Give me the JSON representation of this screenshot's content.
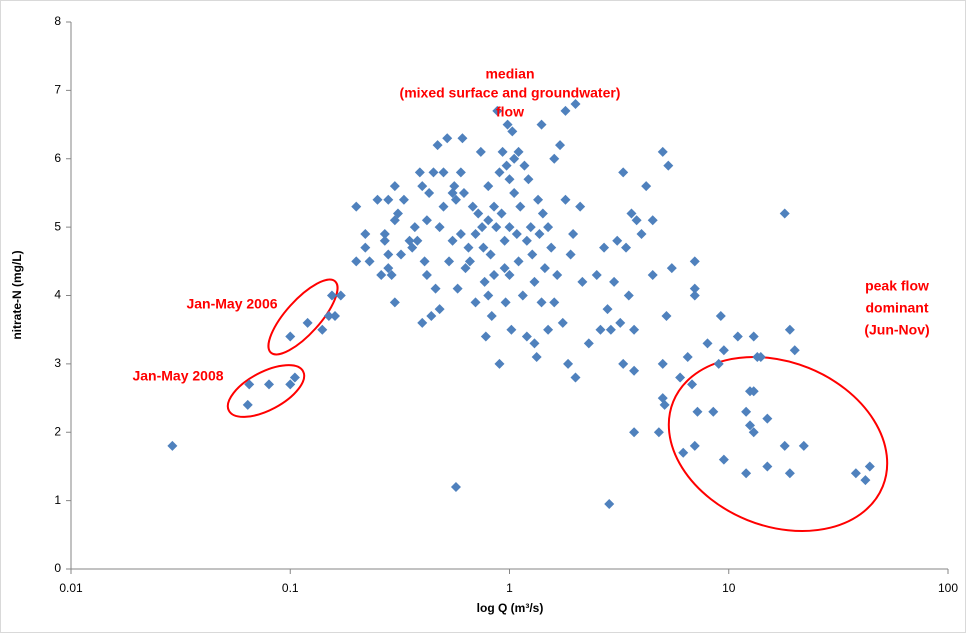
{
  "chart_data": {
    "type": "scatter",
    "color": "#4f81bd",
    "log_x": true,
    "grid": false,
    "x_label": "log Q (m³/s)",
    "y_label": "nitrate-N (mg/L)",
    "xlim": [
      0.01,
      100
    ],
    "xticks": [
      0.01,
      0.1,
      1,
      10,
      100
    ],
    "ylim": [
      0,
      8
    ],
    "yticks": [
      0,
      1,
      2,
      3,
      4,
      5,
      6,
      7,
      8
    ],
    "annotations": [
      {
        "text": [
          "median",
          "(mixed surface and groundwater)",
          "flow"
        ]
      },
      {
        "text": [
          "Jan-May 2006"
        ]
      },
      {
        "text": [
          "Jan-May 2008"
        ]
      },
      {
        "text": [
          "peak flow",
          "dominant",
          "(Jun-Nov)"
        ]
      }
    ],
    "x": [
      0.029,
      0.064,
      0.065,
      0.08,
      0.1,
      0.105,
      0.1,
      0.12,
      0.14,
      0.15,
      0.155,
      0.16,
      0.17,
      0.2,
      0.2,
      0.22,
      0.22,
      0.23,
      0.25,
      0.26,
      0.27,
      0.27,
      0.28,
      0.28,
      0.28,
      0.29,
      0.3,
      0.3,
      0.3,
      0.31,
      0.32,
      0.33,
      0.35,
      0.36,
      0.37,
      0.38,
      0.39,
      0.4,
      0.4,
      0.41,
      0.42,
      0.42,
      0.43,
      0.44,
      0.45,
      0.46,
      0.47,
      0.48,
      0.48,
      0.5,
      0.5,
      0.52,
      0.53,
      0.55,
      0.55,
      0.56,
      0.57,
      0.57,
      0.58,
      0.6,
      0.6,
      0.61,
      0.62,
      0.63,
      0.65,
      0.66,
      0.68,
      0.7,
      0.7,
      0.72,
      0.74,
      0.75,
      0.76,
      0.77,
      0.78,
      0.8,
      0.8,
      0.8,
      0.82,
      0.83,
      0.85,
      0.85,
      0.87,
      0.88,
      0.9,
      0.9,
      0.92,
      0.93,
      0.95,
      0.95,
      0.96,
      0.97,
      0.98,
      1.0,
      1.0,
      1.0,
      1.02,
      1.03,
      1.05,
      1.05,
      1.08,
      1.1,
      1.1,
      1.12,
      1.15,
      1.17,
      1.2,
      1.2,
      1.22,
      1.25,
      1.27,
      1.3,
      1.3,
      1.33,
      1.35,
      1.37,
      1.4,
      1.4,
      1.42,
      1.45,
      1.5,
      1.5,
      1.55,
      1.6,
      1.6,
      1.65,
      1.7,
      1.75,
      1.8,
      1.8,
      1.85,
      1.9,
      1.95,
      2.0,
      2.0,
      2.1,
      2.15,
      2.3,
      2.5,
      2.6,
      2.7,
      2.8,
      2.85,
      2.9,
      3.0,
      3.1,
      3.2,
      3.3,
      3.3,
      3.4,
      3.5,
      3.6,
      3.7,
      3.7,
      3.7,
      3.8,
      4.0,
      4.2,
      4.5,
      4.5,
      4.8,
      5.0,
      5.0,
      5.0,
      5.1,
      5.2,
      5.3,
      5.5,
      7.0,
      7.0,
      7.0,
      18,
      6.0,
      6.2,
      6.5,
      6.8,
      7.2,
      7.0,
      8.0,
      8.5,
      9.0,
      9.2,
      9.5,
      9.5,
      11,
      12,
      12.5,
      12.5,
      12,
      13,
      13,
      13,
      13.5,
      14,
      15,
      15,
      18,
      19,
      19,
      20,
      22,
      38,
      42,
      44
    ],
    "y": [
      1.8,
      2.4,
      2.7,
      2.7,
      2.7,
      2.8,
      3.4,
      3.6,
      3.5,
      3.7,
      4.0,
      3.7,
      4.0,
      4.5,
      5.3,
      4.9,
      4.7,
      4.5,
      5.4,
      4.3,
      4.9,
      4.8,
      4.4,
      4.6,
      5.4,
      4.3,
      5.6,
      5.1,
      3.9,
      5.2,
      4.6,
      5.4,
      4.8,
      4.7,
      5.0,
      4.8,
      5.8,
      5.6,
      3.6,
      4.5,
      4.3,
      5.1,
      5.5,
      3.7,
      5.8,
      4.1,
      6.2,
      5.0,
      3.8,
      5.8,
      5.3,
      6.3,
      4.5,
      5.5,
      4.8,
      5.6,
      5.4,
      1.2,
      4.1,
      5.8,
      4.9,
      6.3,
      5.5,
      4.4,
      4.7,
      4.5,
      5.3,
      4.9,
      3.9,
      5.2,
      6.1,
      5.0,
      4.7,
      4.2,
      3.4,
      5.6,
      5.1,
      4.0,
      4.6,
      3.7,
      5.3,
      4.3,
      5.0,
      6.7,
      5.8,
      3.0,
      5.2,
      6.1,
      4.8,
      4.4,
      3.9,
      5.9,
      6.5,
      5.7,
      5.0,
      4.3,
      3.5,
      6.4,
      5.5,
      6.0,
      4.9,
      6.1,
      4.5,
      5.3,
      4.0,
      5.9,
      3.4,
      4.8,
      5.7,
      5.0,
      4.6,
      3.3,
      4.2,
      3.1,
      5.4,
      4.9,
      6.5,
      3.9,
      5.2,
      4.4,
      3.5,
      5.0,
      4.7,
      6.0,
      3.9,
      4.3,
      6.2,
      3.6,
      6.7,
      5.4,
      3.0,
      4.6,
      4.9,
      6.8,
      2.8,
      5.3,
      4.2,
      3.3,
      4.3,
      3.5,
      4.7,
      3.8,
      0.95,
      3.5,
      4.2,
      4.8,
      3.6,
      5.8,
      3.0,
      4.7,
      4.0,
      5.2,
      3.5,
      2.9,
      2.0,
      5.1,
      4.9,
      5.6,
      5.1,
      4.3,
      2.0,
      6.1,
      3.0,
      2.5,
      2.4,
      3.7,
      5.9,
      4.4,
      4.5,
      4.1,
      4.0,
      5.2,
      2.8,
      1.7,
      3.1,
      2.7,
      2.3,
      1.8,
      3.3,
      2.3,
      3.0,
      3.7,
      3.2,
      1.6,
      3.4,
      2.3,
      2.6,
      2.1,
      1.4,
      2.0,
      2.6,
      3.4,
      3.1,
      3.1,
      1.5,
      2.2,
      1.8,
      1.4,
      3.5,
      3.2,
      1.8,
      1.4,
      1.3,
      1.5
    ]
  }
}
